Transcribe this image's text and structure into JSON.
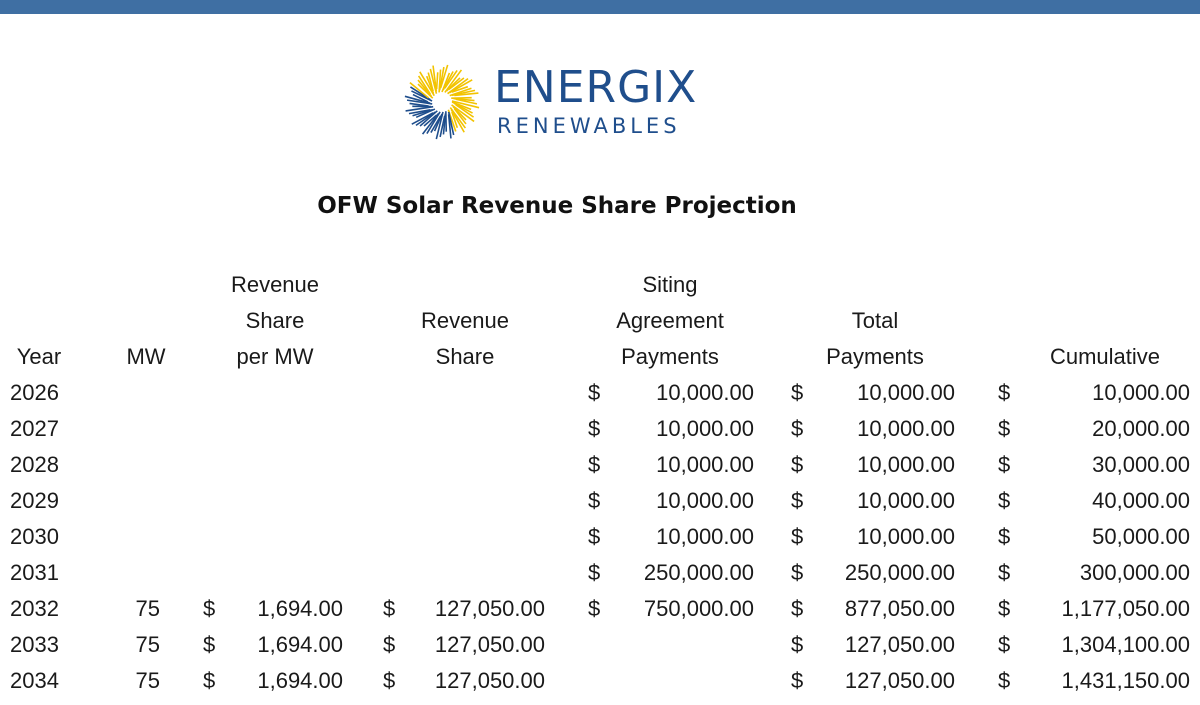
{
  "brand": {
    "name": "ENERGIX",
    "subtitle": "RENEWABLES",
    "icon": "sunburst-icon",
    "color": "#1f4e8c",
    "accent": "#f2c300"
  },
  "title": "OFW Solar Revenue Share Projection",
  "headers": {
    "year": [
      "Year"
    ],
    "mw": [
      "MW"
    ],
    "rev_share_per_mw": [
      "Revenue",
      "Share",
      "per MW"
    ],
    "rev_share": [
      "Revenue",
      "Share"
    ],
    "siting": [
      "Siting",
      "Agreement",
      "Payments"
    ],
    "total": [
      "Total",
      "Payments"
    ],
    "cumulative": [
      "Cumulative"
    ]
  },
  "currency_symbol": "$",
  "rows": [
    {
      "year": "2026",
      "mw": "",
      "rev_per_mw": "",
      "rev_share": "",
      "siting": "10,000.00",
      "total": "10,000.00",
      "cumulative": "10,000.00"
    },
    {
      "year": "2027",
      "mw": "",
      "rev_per_mw": "",
      "rev_share": "",
      "siting": "10,000.00",
      "total": "10,000.00",
      "cumulative": "20,000.00"
    },
    {
      "year": "2028",
      "mw": "",
      "rev_per_mw": "",
      "rev_share": "",
      "siting": "10,000.00",
      "total": "10,000.00",
      "cumulative": "30,000.00"
    },
    {
      "year": "2029",
      "mw": "",
      "rev_per_mw": "",
      "rev_share": "",
      "siting": "10,000.00",
      "total": "10,000.00",
      "cumulative": "40,000.00"
    },
    {
      "year": "2030",
      "mw": "",
      "rev_per_mw": "",
      "rev_share": "",
      "siting": "10,000.00",
      "total": "10,000.00",
      "cumulative": "50,000.00"
    },
    {
      "year": "2031",
      "mw": "",
      "rev_per_mw": "",
      "rev_share": "",
      "siting": "250,000.00",
      "total": "250,000.00",
      "cumulative": "300,000.00"
    },
    {
      "year": "2032",
      "mw": "75",
      "rev_per_mw": "1,694.00",
      "rev_share": "127,050.00",
      "siting": "750,000.00",
      "total": "877,050.00",
      "cumulative": "1,177,050.00"
    },
    {
      "year": "2033",
      "mw": "75",
      "rev_per_mw": "1,694.00",
      "rev_share": "127,050.00",
      "siting": "",
      "total": "127,050.00",
      "cumulative": "1,304,100.00"
    },
    {
      "year": "2034",
      "mw": "75",
      "rev_per_mw": "1,694.00",
      "rev_share": "127,050.00",
      "siting": "",
      "total": "127,050.00",
      "cumulative": "1,431,150.00"
    }
  ]
}
